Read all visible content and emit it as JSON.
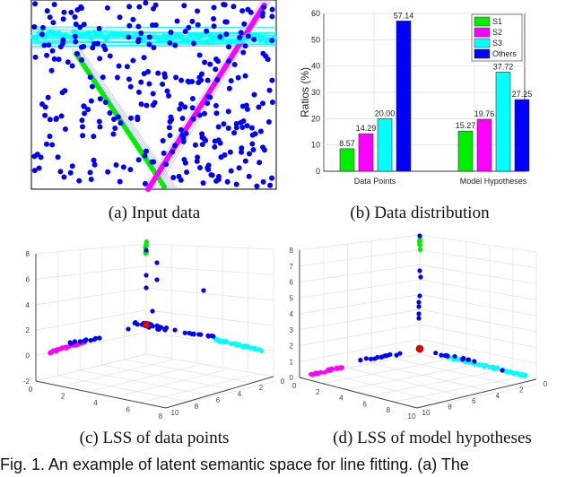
{
  "captions": {
    "a": "(a) Input data",
    "b": "(b) Data distribution",
    "c": "(c) LSS of data points",
    "d": "(d) LSS of model hypotheses"
  },
  "figure_caption": "Fig. 1. An example of latent semantic space for line fitting. (a) The",
  "colors": {
    "S1": "#00ee00",
    "S2": "#ff00ff",
    "S3": "#00ffff",
    "Others": "#0000ff",
    "origin": "#ee0000"
  },
  "chart_data": [
    {
      "type": "bar",
      "ylabel": "Ratios (%)",
      "ylim": [
        0,
        60
      ],
      "yticks": [
        0,
        10,
        20,
        30,
        40,
        50,
        60
      ],
      "grid": true,
      "legend_placement": "top-right",
      "categories": [
        "Data Points",
        "Model Hypotheses"
      ],
      "series": [
        {
          "name": "S1",
          "values": [
            8.57,
            15.27
          ]
        },
        {
          "name": "S2",
          "values": [
            14.29,
            19.76
          ]
        },
        {
          "name": "S3",
          "values": [
            20.0,
            37.72
          ]
        },
        {
          "name": "Others",
          "values": [
            57.14,
            27.25
          ]
        }
      ],
      "data_labels": [
        [
          "8.57",
          "15.27"
        ],
        [
          "14.29",
          "19.76"
        ],
        [
          "20.00",
          "37.72"
        ],
        [
          "57.14",
          "27.25"
        ]
      ]
    },
    {
      "type": "scatter",
      "zticks": [
        "-2",
        "0",
        "2",
        "4",
        "6",
        "8"
      ],
      "xticks": [
        "0",
        "2",
        "4",
        "6",
        "8"
      ],
      "yticks": [
        "10",
        "8",
        "6",
        "4",
        "2",
        "0"
      ]
    },
    {
      "type": "scatter",
      "zticks": [
        "0",
        "1",
        "2",
        "3",
        "4",
        "5",
        "6",
        "7",
        "8"
      ],
      "xticks": [
        "0",
        "2",
        "4",
        "6",
        "8",
        "10"
      ],
      "yticks": [
        "10",
        "8",
        "6",
        "4",
        "2",
        "0"
      ]
    }
  ]
}
